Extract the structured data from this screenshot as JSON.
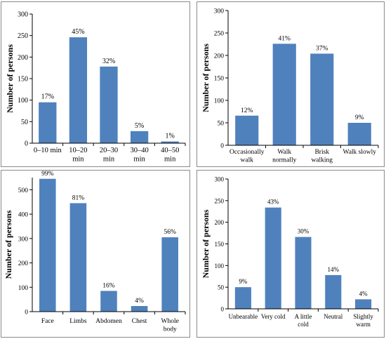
{
  "chart_data": [
    {
      "type": "bar",
      "ylabel": "Number of persons",
      "categories": [
        [
          "0–10 min"
        ],
        [
          "10–20",
          "min"
        ],
        [
          "20–30",
          "min"
        ],
        [
          "30–40",
          "min"
        ],
        [
          "40–50",
          "min"
        ]
      ],
      "values": [
        95,
        246,
        178,
        28,
        4
      ],
      "data_labels": [
        "17%",
        "45%",
        "32%",
        "5%",
        "1%"
      ],
      "ylim": [
        0,
        300
      ],
      "yticks": [
        0,
        50,
        100,
        150,
        200,
        250,
        300
      ],
      "color": "#4f81bd"
    },
    {
      "type": "bar",
      "ylabel": "Number of persons",
      "categories": [
        [
          "Occasionally",
          "walk"
        ],
        [
          "Walk",
          "normally"
        ],
        [
          "Brisk",
          "walking"
        ],
        [
          "Walk slowly"
        ]
      ],
      "values": [
        66,
        226,
        204,
        50
      ],
      "data_labels": [
        "12%",
        "41%",
        "37%",
        "9%"
      ],
      "ylim": [
        0,
        300
      ],
      "yticks": [
        0,
        50,
        100,
        150,
        200,
        250,
        300
      ],
      "color": "#4f81bd"
    },
    {
      "type": "bar",
      "ylabel": "Number of persons",
      "categories": [
        [
          "Face"
        ],
        [
          "Limbs"
        ],
        [
          "Abdomen"
        ],
        [
          "Chest"
        ],
        [
          "Whole",
          "body"
        ]
      ],
      "values": [
        545,
        445,
        85,
        23,
        305
      ],
      "data_labels": [
        "99%",
        "81%",
        "16%",
        "4%",
        "56%"
      ],
      "ylim": [
        0,
        550
      ],
      "yticks": [
        0,
        100,
        200,
        300,
        400,
        500
      ],
      "color": "#4f81bd"
    },
    {
      "type": "bar",
      "ylabel": "Number of persons",
      "categories": [
        [
          "Unbearable"
        ],
        [
          "Very cold"
        ],
        [
          "A little",
          "cold"
        ],
        [
          "Neutral"
        ],
        [
          "Slightly",
          "warm"
        ]
      ],
      "values": [
        50,
        234,
        166,
        78,
        22
      ],
      "data_labels": [
        "9%",
        "43%",
        "30%",
        "14%",
        "4%"
      ],
      "ylim": [
        0,
        300
      ],
      "yticks": [
        0,
        50,
        100,
        150,
        200,
        250,
        300
      ],
      "color": "#4f81bd"
    }
  ]
}
